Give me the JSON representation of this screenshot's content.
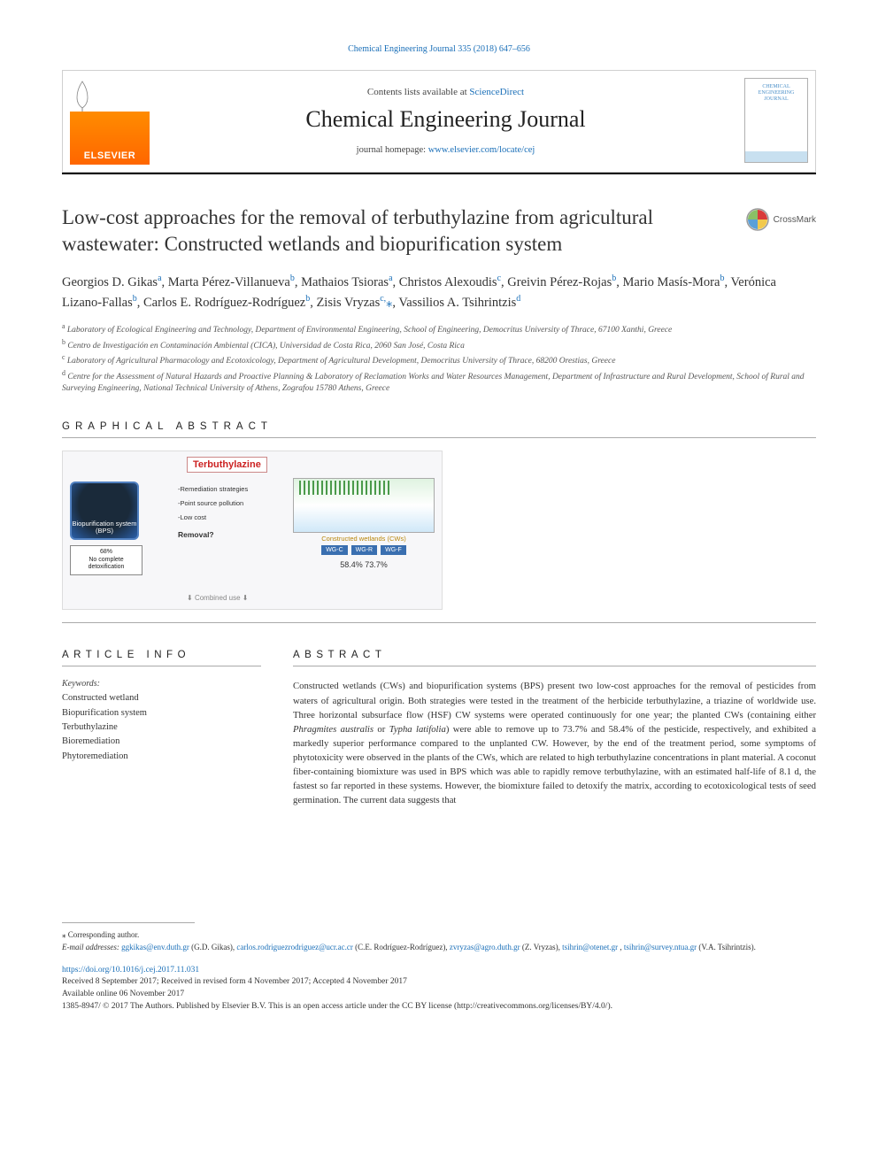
{
  "citation": "Chemical Engineering Journal 335 (2018) 647–656",
  "header": {
    "contents_prefix": "Contents lists available at ",
    "contents_link": "ScienceDirect",
    "journal_name": "Chemical Engineering Journal",
    "homepage_prefix": "journal homepage: ",
    "homepage_url": "www.elsevier.com/locate/cej",
    "elsevier": "ELSEVIER",
    "cover_text": "CHEMICAL\nENGINEERING\nJOURNAL"
  },
  "crossmark": "CrossMark",
  "title": "Low-cost approaches for the removal of terbuthylazine from agricultural wastewater: Constructed wetlands and biopurification system",
  "authors_html": "Georgios D. Gikas<sup>a</sup>, Marta Pérez-Villanueva<sup>b</sup>, Mathaios Tsioras<sup>a</sup>, Christos Alexoudis<sup>c</sup>, Greivin Pérez-Rojas<sup>b</sup>, Mario Masís-Mora<sup>b</sup>, Verónica Lizano-Fallas<sup>b</sup>, Carlos E. Rodríguez-Rodríguez<sup>b</sup>, Zisis Vryzas<sup>c,</sup><a href='#'>⁎</a>, Vassilios A. Tsihrintzis<sup>d</sup>",
  "affiliations": [
    {
      "sup": "a",
      "text": "Laboratory of Ecological Engineering and Technology, Department of Environmental Engineering, School of Engineering, Democritus University of Thrace, 67100 Xanthi, Greece"
    },
    {
      "sup": "b",
      "text": "Centro de Investigación en Contaminación Ambiental (CICA), Universidad de Costa Rica, 2060 San José, Costa Rica"
    },
    {
      "sup": "c",
      "text": "Laboratory of Agricultural Pharmacology and Ecotoxicology, Department of Agricultural Development, Democritus University of Thrace, 68200 Orestias, Greece"
    },
    {
      "sup": "d",
      "text": "Centre for the Assessment of Natural Hazards and Proactive Planning & Laboratory of Reclamation Works and Water Resources Management, Department of Infrastructure and Rural Development, School of Rural and Surveying Engineering, National Technical University of Athens, Zografou 15780 Athens, Greece"
    }
  ],
  "sections": {
    "graphical_abstract": "GRAPHICAL ABSTRACT",
    "article_info": "ARTICLE INFO",
    "abstract": "ABSTRACT"
  },
  "graphical_abstract": {
    "title": "Terbuthylazine",
    "bps_label": "Biopurification system (BPS)",
    "bps_result": "68%\nNo complete detoxification",
    "center_lines": [
      "-Remediation strategies",
      "-Point source pollution",
      "-Low cost"
    ],
    "removal": "Removal?",
    "combined": "Combined use",
    "cw_title": "Constructed wetlands (CWs)",
    "cw_labels": [
      "WG-C",
      "WG-R",
      "WG-F"
    ],
    "cw_result": "58.4%  73.7%",
    "colors": {
      "title_color": "#cc2222",
      "bps_bg": "#2a5fa8",
      "cw_label_bg": "#3a6fb0",
      "cw_title_color": "#b8860b"
    }
  },
  "keywords": {
    "label": "Keywords:",
    "items": [
      "Constructed wetland",
      "Biopurification system",
      "Terbuthylazine",
      "Bioremediation",
      "Phytoremediation"
    ]
  },
  "abstract_html": "Constructed wetlands (CWs) and biopurification systems (BPS) present two low-cost approaches for the removal of pesticides from waters of agricultural origin. Both strategies were tested in the treatment of the herbicide terbuthylazine, a triazine of worldwide use. Three horizontal subsurface flow (HSF) CW systems were operated continuously for one year; the planted CWs (containing either <em>Phragmites australis</em> or <em>Typha latifolia</em>) were able to remove up to 73.7% and 58.4% of the pesticide, respectively, and exhibited a markedly superior performance compared to the unplanted CW. However, by the end of the treatment period, some symptoms of phytotoxicity were observed in the plants of the CWs, which are related to high terbuthylazine concentrations in plant material. A coconut fiber-containing biomixture was used in BPS which was able to rapidly remove terbuthylazine, with an estimated half-life of 8.1 d, the fastest so far reported in these systems. However, the biomixture failed to detoxify the matrix, according to ecotoxicological tests of seed germination. The current data suggests that",
  "footer": {
    "corresponding": "⁎ Corresponding author.",
    "email_label": "E-mail addresses:",
    "emails": [
      {
        "addr": "ggkikas@env.duth.gr",
        "who": "(G.D. Gikas)"
      },
      {
        "addr": "carlos.rodriguezrodriguez@ucr.ac.cr",
        "who": "(C.E. Rodríguez-Rodríguez)"
      },
      {
        "addr": "zvryzas@agro.duth.gr",
        "who": "(Z. Vryzas)"
      },
      {
        "addr": "tsihrin@otenet.gr",
        "who": ""
      },
      {
        "addr": "tsihrin@survey.ntua.gr",
        "who": "(V.A. Tsihrintzis)."
      }
    ],
    "doi": "https://doi.org/10.1016/j.cej.2017.11.031",
    "dates": [
      "Received 8 September 2017; Received in revised form 4 November 2017; Accepted 4 November 2017",
      "Available online 06 November 2017",
      "1385-8947/ © 2017 The Authors. Published by Elsevier B.V. This is an open access article under the CC BY license (http://creativecommons.org/licenses/BY/4.0/)."
    ]
  },
  "colors": {
    "link": "#1a6fb8",
    "text": "#333333",
    "rule_heavy": "#000000",
    "rule_light": "#aaaaaa",
    "elsevier_orange": "#ff6600"
  },
  "typography": {
    "title_fontsize": 23,
    "journal_fontsize": 26,
    "body_fontsize": 10.7,
    "affiliation_fontsize": 9.5,
    "section_letterspacing": 6
  }
}
